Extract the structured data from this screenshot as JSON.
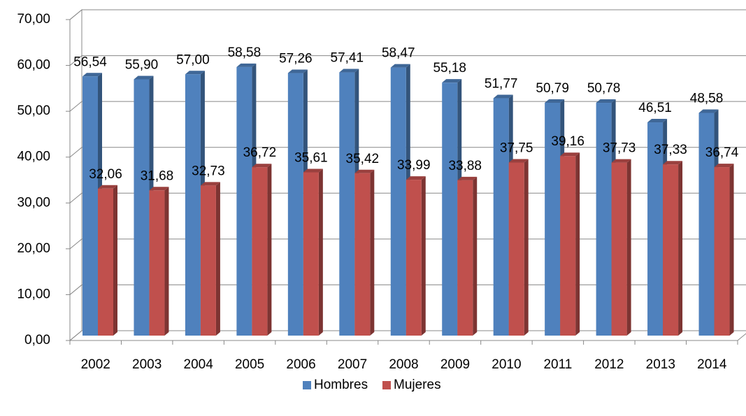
{
  "chart_data": {
    "type": "bar3d",
    "categories": [
      "2002",
      "2003",
      "2004",
      "2005",
      "2006",
      "2007",
      "2008",
      "2009",
      "2010",
      "2011",
      "2012",
      "2013",
      "2014"
    ],
    "series": [
      {
        "name": "Hombres",
        "color": "#4f81bd",
        "values": [
          56.54,
          55.9,
          57.0,
          58.58,
          57.26,
          57.41,
          58.47,
          55.18,
          51.77,
          50.79,
          50.78,
          46.51,
          48.58
        ],
        "value_labels": [
          "56,54",
          "55,90",
          "57,00",
          "58,58",
          "57,26",
          "57,41",
          "58,47",
          "55,18",
          "51,77",
          "50,79",
          "50,78",
          "46,51",
          "48,58"
        ]
      },
      {
        "name": "Mujeres",
        "color": "#c0504d",
        "values": [
          32.06,
          31.68,
          32.73,
          36.72,
          35.61,
          35.42,
          33.99,
          33.88,
          37.75,
          39.16,
          37.73,
          37.33,
          36.74
        ],
        "value_labels": [
          "32,06",
          "31,68",
          "32,73",
          "36,72",
          "35,61",
          "35,42",
          "33,99",
          "33,88",
          "37,75",
          "39,16",
          "37,73",
          "37,33",
          "36,74"
        ]
      }
    ],
    "ylim": [
      0,
      70
    ],
    "yticks": [
      {
        "value": 0,
        "label": "0,00"
      },
      {
        "value": 10,
        "label": "10,00"
      },
      {
        "value": 20,
        "label": "20,00"
      },
      {
        "value": 30,
        "label": "30,00"
      },
      {
        "value": 40,
        "label": "40,00"
      },
      {
        "value": 50,
        "label": "50,00"
      },
      {
        "value": 60,
        "label": "60,00"
      },
      {
        "value": 70,
        "label": "70,00"
      }
    ],
    "grid": true,
    "legend": "bottom"
  }
}
